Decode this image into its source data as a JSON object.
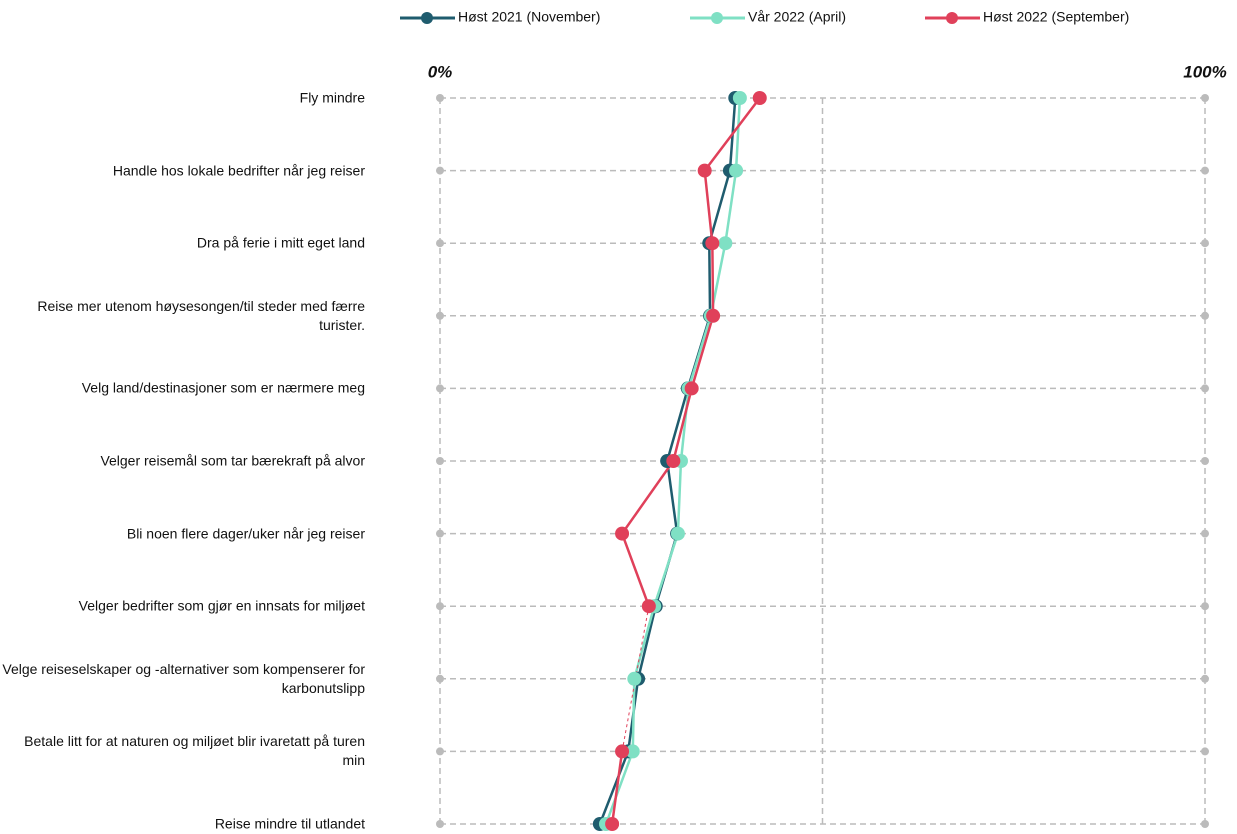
{
  "chart_data": {
    "type": "line",
    "orientation": "horizontal",
    "categories": [
      "Fly mindre",
      "Handle hos lokale bedrifter når jeg reiser",
      "Dra på ferie i mitt eget land",
      "Reise mer utenom høysesongen/til steder med færre turister.",
      "Velg land/destinasjoner som er nærmere meg",
      "Velger reisemål som tar bærekraft på alvor",
      "Bli noen flere dager/uker når jeg reiser",
      "Velger bedrifter som gjør en innsats for miljøet",
      "Velge reiseselskaper og -alternativer som kompenserer for karbonutslipp",
      "Betale litt for at naturen og miljøet blir ivaretatt på turen min",
      "Reise mindre til utlandet"
    ],
    "series": [
      {
        "name": "Høst 2021 (November)",
        "color": "#1f5c6e",
        "values": [
          38.6,
          37.9,
          35.2,
          35.3,
          32.4,
          29.7,
          31.0,
          28.2,
          25.9,
          24.6,
          20.9
        ]
      },
      {
        "name": "Vår 2022 (April)",
        "color": "#7fe0c4",
        "values": [
          39.2,
          38.7,
          37.3,
          35.4,
          32.5,
          31.5,
          31.1,
          28.0,
          25.4,
          25.2,
          21.7
        ]
      },
      {
        "name": "Høst 2022 (September)",
        "color": "#e0405a",
        "values": [
          41.8,
          34.6,
          35.6,
          35.7,
          32.9,
          30.5,
          23.8,
          27.3,
          null,
          23.8,
          22.5
        ]
      }
    ],
    "xlim": [
      0,
      100
    ],
    "xticks": [
      {
        "value": 0,
        "label": "0%"
      },
      {
        "value": 100,
        "label": "100%"
      }
    ],
    "xgrid": [
      0,
      50,
      100
    ],
    "legend": "top",
    "grid": true
  }
}
